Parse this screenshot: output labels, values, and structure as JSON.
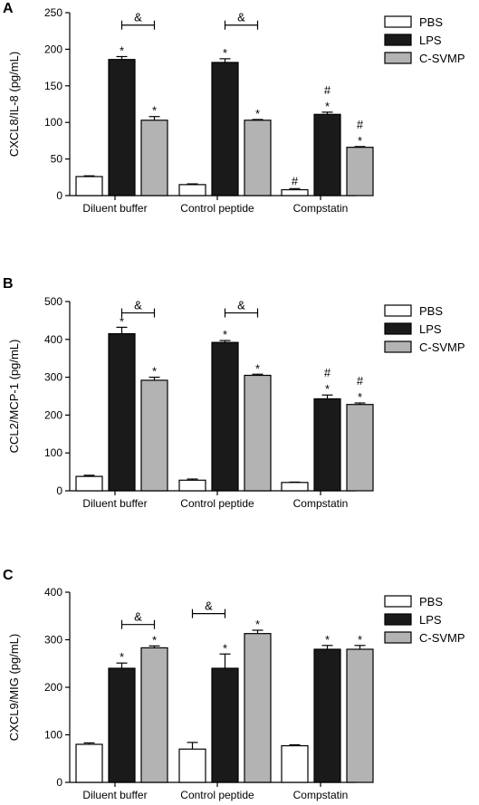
{
  "chart_data": [
    {
      "panel": "A",
      "type": "bar",
      "ylabel": "CXCL8/IL-8 (pg/mL)",
      "ylim": [
        0,
        250
      ],
      "yticks": [
        0,
        50,
        100,
        150,
        200,
        250
      ],
      "categories": [
        "Diluent buffer",
        "Control peptide",
        "Compstatin"
      ],
      "legend_position": "right",
      "series": [
        {
          "name": "PBS",
          "color": "#ffffff",
          "values": [
            26,
            15,
            8
          ],
          "errors": [
            1,
            1,
            1.5
          ],
          "marks": [
            "",
            "",
            "#"
          ]
        },
        {
          "name": "LPS",
          "color": "#1a1a1a",
          "values": [
            186,
            182,
            111
          ],
          "errors": [
            4,
            5,
            3
          ],
          "marks": [
            "*",
            "*",
            "#*"
          ]
        },
        {
          "name": "C-SVMP",
          "color": "#b3b3b3",
          "values": [
            103,
            103,
            66
          ],
          "errors": [
            5,
            1,
            1
          ],
          "marks": [
            "*",
            "*",
            "#*"
          ]
        }
      ],
      "brackets": [
        {
          "category": 0,
          "from_series": 1,
          "to_series": 2,
          "level": 233,
          "label": "&"
        },
        {
          "category": 1,
          "from_series": 1,
          "to_series": 2,
          "level": 233,
          "label": "&"
        }
      ]
    },
    {
      "panel": "B",
      "type": "bar",
      "ylabel": "CCL2/MCP-1 (pg/mL)",
      "ylim": [
        0,
        500
      ],
      "yticks": [
        0,
        100,
        200,
        300,
        400,
        500
      ],
      "categories": [
        "Diluent buffer",
        "Control peptide",
        "Compstatin"
      ],
      "legend_position": "right",
      "series": [
        {
          "name": "PBS",
          "color": "#ffffff",
          "values": [
            38,
            28,
            22
          ],
          "errors": [
            3,
            3,
            1
          ],
          "marks": [
            "",
            "",
            ""
          ]
        },
        {
          "name": "LPS",
          "color": "#1a1a1a",
          "values": [
            415,
            392,
            243
          ],
          "errors": [
            17,
            5,
            10
          ],
          "marks": [
            "*",
            "*",
            "#*"
          ]
        },
        {
          "name": "C-SVMP",
          "color": "#b3b3b3",
          "values": [
            292,
            305,
            228
          ],
          "errors": [
            8,
            3,
            4
          ],
          "marks": [
            "*",
            "*",
            "#*"
          ]
        }
      ],
      "brackets": [
        {
          "category": 0,
          "from_series": 1,
          "to_series": 2,
          "level": 470,
          "label": "&"
        },
        {
          "category": 1,
          "from_series": 1,
          "to_series": 2,
          "level": 470,
          "label": "&"
        }
      ]
    },
    {
      "panel": "C",
      "type": "bar",
      "ylabel": "CXCL9/MIG (pg/mL)",
      "ylim": [
        0,
        400
      ],
      "yticks": [
        0,
        100,
        200,
        300,
        400
      ],
      "categories": [
        "Diluent buffer",
        "Control peptide",
        "Compstatin"
      ],
      "legend_position": "right",
      "series": [
        {
          "name": "PBS",
          "color": "#ffffff",
          "values": [
            80,
            70,
            77
          ],
          "errors": [
            3,
            14,
            2
          ],
          "marks": [
            "",
            "",
            ""
          ]
        },
        {
          "name": "LPS",
          "color": "#1a1a1a",
          "values": [
            240,
            240,
            280
          ],
          "errors": [
            11,
            30,
            8
          ],
          "marks": [
            "*",
            "*",
            "*"
          ]
        },
        {
          "name": "C-SVMP",
          "color": "#b3b3b3",
          "values": [
            283,
            313,
            280
          ],
          "errors": [
            4,
            7,
            8
          ],
          "marks": [
            "*",
            "*",
            "*"
          ]
        }
      ],
      "brackets": [
        {
          "category": 0,
          "from_series": 1,
          "to_series": 2,
          "level": 332,
          "label": "&"
        },
        {
          "category": 1,
          "from_series": 0,
          "to_series": 1,
          "level": 355,
          "label": "&"
        }
      ]
    }
  ]
}
